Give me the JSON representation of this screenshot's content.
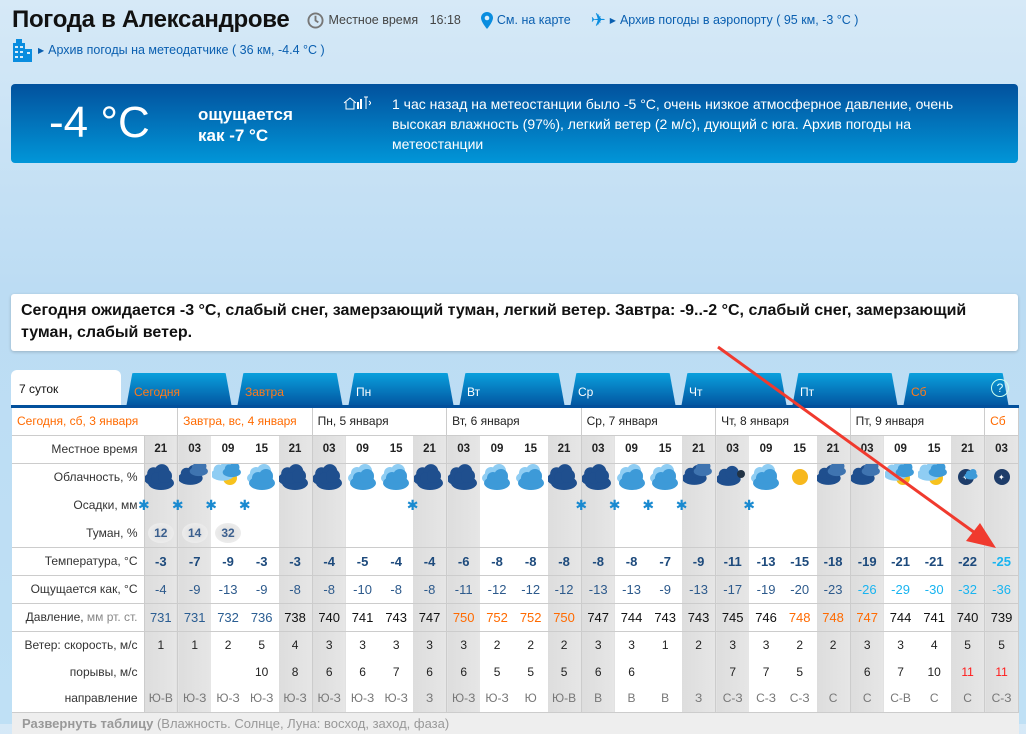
{
  "header": {
    "title": "Погода в Александрове",
    "local_time_label": "Местное время",
    "local_time": "16:18",
    "map_link": "См. на карте",
    "airport_link": "Архив погоды в аэропорту ( 95 км, -3 °C )",
    "sensor_link": "Архив погоды на метеодатчике ( 36 км, -4.4 °C )"
  },
  "now": {
    "temp": "-4 °C",
    "feels": "ощущается как -7 °C",
    "station_text": "1 час назад на метеостанции было -5 °C, очень низкое атмосферное давление, очень высокая влажность (97%), легкий ветер (2 м/с), дующий с юга. Архив погоды на метеостанции"
  },
  "forecast_text": "Сегодня ожидается -3 °C, слабый снег, замерзающий туман, легкий ветер. Завтра: -9..-2 °C, слабый снег, замерзающий туман, слабый ветер.",
  "tabs": [
    {
      "label": "7 суток",
      "active": true
    },
    {
      "label": "Сегодня",
      "weekend": true
    },
    {
      "label": "Завтра",
      "weekend": true
    },
    {
      "label": "Пн"
    },
    {
      "label": "Вт"
    },
    {
      "label": "Ср"
    },
    {
      "label": "Чт"
    },
    {
      "label": "Пт"
    },
    {
      "label": "Сб",
      "weekend": true
    }
  ],
  "help_label": "?",
  "days": [
    {
      "label": "Сегодня, сб, 3 января",
      "cols": 1,
      "weekend": true
    },
    {
      "label": "Завтра, вс, 4 января",
      "cols": 4,
      "weekend": true
    },
    {
      "label": "Пн, 5 января",
      "cols": 4
    },
    {
      "label": "Вт, 6 января",
      "cols": 4
    },
    {
      "label": "Ср, 7 января",
      "cols": 4
    },
    {
      "label": "Чт, 8 января",
      "cols": 4
    },
    {
      "label": "Пт, 9 января",
      "cols": 4
    },
    {
      "label": "Сб",
      "cols": 1,
      "weekend": true
    }
  ],
  "row_labels": {
    "time": "Местное время",
    "clouds": "Облачность, %",
    "precip": "Осадки, мм",
    "fog": "Туман, %",
    "temp": "Температура, °C",
    "feels": "Ощущается как, °C",
    "pressure": "Давление,",
    "pressure_unit": "мм рт. ст.",
    "wind": "Ветер: скорость, м/с",
    "gusts": "порывы, м/с",
    "dir": "направление"
  },
  "times": [
    "21",
    "03",
    "09",
    "15",
    "21",
    "03",
    "09",
    "15",
    "21",
    "03",
    "09",
    "15",
    "21",
    "03",
    "09",
    "15",
    "21",
    "03",
    "09",
    "15",
    "21",
    "03",
    "09",
    "15",
    "21",
    "03"
  ],
  "clouds": [
    "overcast",
    "overcast-partial",
    "partly-sunny",
    "cloudy",
    "overcast",
    "overcast",
    "cloudy",
    "cloudy",
    "overcast",
    "overcast",
    "cloudy",
    "cloudy",
    "overcast",
    "overcast",
    "cloudy",
    "cloudy",
    "overcast-partial",
    "cloudy-night",
    "cloudy",
    "sunny",
    "overcast-partial",
    "overcast-partial",
    "partly-sunny",
    "partly-sunny",
    "clear-night-cloud",
    "clear-night"
  ],
  "snow": [
    true,
    true,
    true,
    true,
    false,
    false,
    false,
    false,
    true,
    false,
    false,
    false,
    false,
    true,
    true,
    true,
    true,
    false,
    true,
    false,
    false,
    false,
    false,
    false,
    false,
    false
  ],
  "fog": [
    "12",
    "14",
    "32",
    "",
    "",
    "",
    "",
    "",
    "",
    "",
    "",
    "",
    "",
    "",
    "",
    "",
    "",
    "",
    "",
    "",
    "",
    "",
    "",
    "",
    "",
    ""
  ],
  "temp": [
    "-3",
    "-7",
    "-9",
    "-3",
    "-3",
    "-4",
    "-5",
    "-4",
    "-4",
    "-6",
    "-8",
    "-8",
    "-8",
    "-8",
    "-8",
    "-7",
    "-9",
    "-11",
    "-13",
    "-15",
    "-18",
    "-19",
    "-21",
    "-21",
    "-22",
    "-25"
  ],
  "feels": [
    "-4",
    "-9",
    "-13",
    "-9",
    "-8",
    "-8",
    "-10",
    "-8",
    "-8",
    "-11",
    "-12",
    "-12",
    "-12",
    "-13",
    "-13",
    "-9",
    "-13",
    "-17",
    "-19",
    "-20",
    "-23",
    "-26",
    "-29",
    "-30",
    "-32",
    "-36"
  ],
  "pressure": [
    "731",
    "731",
    "732",
    "736",
    "738",
    "740",
    "741",
    "743",
    "747",
    "750",
    "752",
    "752",
    "750",
    "747",
    "744",
    "743",
    "743",
    "745",
    "746",
    "748",
    "748",
    "747",
    "744",
    "741",
    "740",
    "739"
  ],
  "pressure_level": [
    "low",
    "low",
    "low",
    "low",
    "normal",
    "normal",
    "normal",
    "normal",
    "normal",
    "high",
    "high",
    "high",
    "high",
    "normal",
    "normal",
    "normal",
    "normal",
    "normal",
    "normal",
    "high",
    "high",
    "high",
    "normal",
    "normal",
    "normal",
    "normal"
  ],
  "wind": [
    "1",
    "1",
    "2",
    "5",
    "4",
    "3",
    "3",
    "3",
    "3",
    "3",
    "2",
    "2",
    "2",
    "3",
    "3",
    "1",
    "2",
    "3",
    "3",
    "2",
    "2",
    "3",
    "3",
    "4",
    "5",
    "5"
  ],
  "gusts": [
    "",
    "",
    "",
    "10",
    "8",
    "6",
    "6",
    "7",
    "6",
    "6",
    "5",
    "5",
    "5",
    "6",
    "6",
    "",
    "",
    "7",
    "7",
    "5",
    "",
    "6",
    "7",
    "10",
    "11",
    "11"
  ],
  "dir": [
    "Ю-В",
    "Ю-З",
    "Ю-З",
    "Ю-З",
    "Ю-З",
    "Ю-З",
    "Ю-З",
    "Ю-З",
    "З",
    "Ю-З",
    "Ю-З",
    "Ю",
    "Ю-В",
    "В",
    "В",
    "В",
    "З",
    "С-З",
    "С-З",
    "С-З",
    "С",
    "С",
    "С-В",
    "С",
    "С",
    "С-З"
  ],
  "footer": {
    "expand": "Развернуть таблицу",
    "details": "(Влажность. Солнце, Луна: восход, заход, фаза)"
  },
  "colors": {
    "accent": "#02509c",
    "weekend": "#ff6a00",
    "cold": "#19b4f0",
    "high_pressure": "#ff6a00",
    "strong_gust": "#ff1a1a",
    "annotation_arrow": "#f03a2e"
  }
}
